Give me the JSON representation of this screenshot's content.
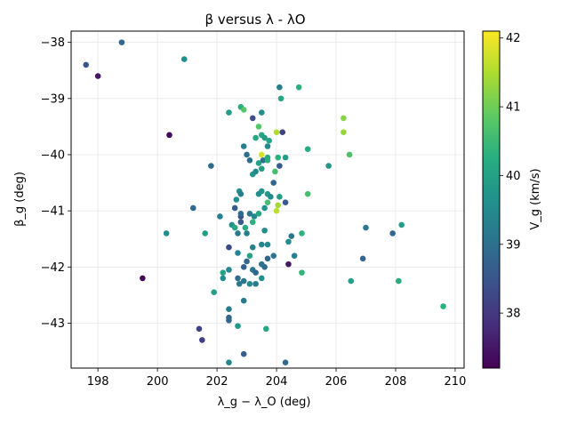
{
  "chart_data": {
    "type": "scatter",
    "title": "β versus λ - λΟ",
    "xlabel": "λ_g − λ_O (deg)",
    "ylabel": "β_g (deg)",
    "colorbar_label": "V_g (km/s)",
    "colormap": "viridis",
    "xlim": [
      197.1,
      210.3
    ],
    "ylim": [
      -43.8,
      -37.8
    ],
    "clim": [
      37.2,
      42.1
    ],
    "grid": true,
    "x_ticks": [
      "198",
      "200",
      "202",
      "204",
      "206",
      "208",
      "210"
    ],
    "y_ticks": [
      "−38",
      "−39",
      "−40",
      "−41",
      "−42",
      "−43"
    ],
    "c_ticks": [
      "38",
      "39",
      "40",
      "41",
      "42"
    ],
    "points": [
      [
        197.6,
        -38.4,
        38.5
      ],
      [
        198.0,
        -38.6,
        37.5
      ],
      [
        198.8,
        -38.0,
        38.8
      ],
      [
        200.9,
        -38.3,
        39.6
      ],
      [
        200.4,
        -39.65,
        37.3
      ],
      [
        201.8,
        -40.2,
        38.9
      ],
      [
        201.2,
        -40.95,
        38.9
      ],
      [
        200.3,
        -41.4,
        39.6
      ],
      [
        201.6,
        -41.4,
        39.9
      ],
      [
        199.5,
        -42.2,
        37.3
      ],
      [
        201.4,
        -43.1,
        38.2
      ],
      [
        201.5,
        -43.3,
        38.1
      ],
      [
        201.9,
        -42.45,
        39.9
      ],
      [
        202.1,
        -41.1,
        39.3
      ],
      [
        202.2,
        -42.1,
        40.0
      ],
      [
        202.2,
        -42.2,
        39.6
      ],
      [
        202.4,
        -42.05,
        39.5
      ],
      [
        202.4,
        -42.75,
        39.2
      ],
      [
        202.4,
        -42.9,
        38.8
      ],
      [
        202.4,
        -42.95,
        38.8
      ],
      [
        202.4,
        -43.7,
        39.5
      ],
      [
        202.4,
        -41.65,
        38.3
      ],
      [
        202.4,
        -39.25,
        39.9
      ],
      [
        202.5,
        -41.25,
        39.7
      ],
      [
        202.6,
        -41.3,
        40.1
      ],
      [
        202.6,
        -40.95,
        38.6
      ],
      [
        202.65,
        -40.8,
        39.6
      ],
      [
        202.7,
        -41.4,
        39.2
      ],
      [
        202.7,
        -41.75,
        39.4
      ],
      [
        202.7,
        -42.2,
        38.9
      ],
      [
        202.75,
        -42.3,
        39.2
      ],
      [
        202.7,
        -43.05,
        39.8
      ],
      [
        202.8,
        -41.1,
        38.4
      ],
      [
        202.8,
        -41.2,
        38.6
      ],
      [
        202.8,
        -41.05,
        38.9
      ],
      [
        202.75,
        -40.65,
        39.6
      ],
      [
        202.8,
        -40.7,
        39.3
      ],
      [
        202.8,
        -39.15,
        40.2
      ],
      [
        202.9,
        -39.2,
        40.8
      ],
      [
        202.9,
        -39.85,
        39.3
      ],
      [
        202.9,
        -42.0,
        38.7
      ],
      [
        202.9,
        -42.25,
        39.1
      ],
      [
        202.9,
        -42.6,
        39.2
      ],
      [
        202.9,
        -43.55,
        38.7
      ],
      [
        202.95,
        -41.3,
        40.2
      ],
      [
        203.0,
        -41.4,
        39.3
      ],
      [
        203.0,
        -40.0,
        39.0
      ],
      [
        203.0,
        -41.9,
        38.8
      ],
      [
        203.1,
        -41.05,
        39.2
      ],
      [
        203.1,
        -41.8,
        40.0
      ],
      [
        203.1,
        -42.3,
        39.5
      ],
      [
        203.1,
        -40.1,
        39.0
      ],
      [
        203.2,
        -41.2,
        40.3
      ],
      [
        203.2,
        -40.35,
        39.8
      ],
      [
        203.2,
        -39.35,
        38.4
      ],
      [
        203.2,
        -41.65,
        39.3
      ],
      [
        203.2,
        -42.05,
        39.1
      ],
      [
        203.25,
        -41.1,
        39.5
      ],
      [
        203.3,
        -39.7,
        40.1
      ],
      [
        203.3,
        -40.3,
        39.5
      ],
      [
        203.3,
        -42.1,
        38.8
      ],
      [
        203.3,
        -42.3,
        39.2
      ],
      [
        203.4,
        -41.05,
        40.1
      ],
      [
        203.4,
        -40.7,
        39.6
      ],
      [
        203.4,
        -40.15,
        40.0
      ],
      [
        203.4,
        -39.5,
        40.8
      ],
      [
        203.5,
        -39.25,
        39.6
      ],
      [
        203.5,
        -39.65,
        40.1
      ],
      [
        203.5,
        -40.0,
        41.8
      ],
      [
        203.5,
        -40.25,
        39.9
      ],
      [
        203.5,
        -40.65,
        39.7
      ],
      [
        203.5,
        -41.95,
        39.1
      ],
      [
        203.5,
        -42.2,
        39.6
      ],
      [
        203.5,
        -41.6,
        39.4
      ],
      [
        203.55,
        -40.1,
        39.0
      ],
      [
        203.6,
        -39.7,
        39.9
      ],
      [
        203.6,
        -40.95,
        39.7
      ],
      [
        203.6,
        -41.35,
        39.6
      ],
      [
        203.6,
        -42.0,
        38.9
      ],
      [
        203.65,
        -43.1,
        40.1
      ],
      [
        203.7,
        -41.6,
        39.5
      ],
      [
        203.7,
        -41.85,
        38.8
      ],
      [
        203.7,
        -40.7,
        39.8
      ],
      [
        203.7,
        -40.85,
        40.6
      ],
      [
        203.7,
        -39.85,
        39.5
      ],
      [
        203.7,
        -40.1,
        40.3
      ],
      [
        203.7,
        -40.05,
        40.2
      ],
      [
        203.75,
        -39.75,
        40.0
      ],
      [
        203.8,
        -40.75,
        39.5
      ],
      [
        203.9,
        -40.5,
        38.8
      ],
      [
        203.9,
        -41.8,
        39.1
      ],
      [
        203.95,
        -40.3,
        40.6
      ],
      [
        204.0,
        -39.6,
        41.5
      ],
      [
        204.0,
        -41.0,
        41.6
      ],
      [
        204.05,
        -40.05,
        40.3
      ],
      [
        204.05,
        -40.9,
        41.4
      ],
      [
        204.1,
        -40.2,
        38.6
      ],
      [
        204.1,
        -38.8,
        39.3
      ],
      [
        204.1,
        -40.75,
        39.9
      ],
      [
        204.15,
        -39.0,
        40.1
      ],
      [
        204.2,
        -39.6,
        38.2
      ],
      [
        204.3,
        -40.05,
        39.9
      ],
      [
        204.3,
        -40.85,
        38.6
      ],
      [
        204.3,
        -43.7,
        38.9
      ],
      [
        204.4,
        -41.95,
        37.5
      ],
      [
        204.4,
        -41.55,
        39.6
      ],
      [
        204.5,
        -41.45,
        39.1
      ],
      [
        204.6,
        -41.8,
        39.3
      ],
      [
        204.75,
        -38.8,
        40.3
      ],
      [
        204.85,
        -41.4,
        40.3
      ],
      [
        204.85,
        -42.1,
        40.4
      ],
      [
        205.05,
        -39.9,
        40.2
      ],
      [
        205.05,
        -40.7,
        40.6
      ],
      [
        205.75,
        -40.2,
        39.8
      ],
      [
        206.25,
        -39.35,
        41.2
      ],
      [
        206.25,
        -39.6,
        41.3
      ],
      [
        206.45,
        -40.0,
        40.7
      ],
      [
        206.5,
        -42.25,
        40.0
      ],
      [
        206.9,
        -41.85,
        38.8
      ],
      [
        207.0,
        -41.3,
        39.2
      ],
      [
        207.9,
        -41.4,
        38.8
      ],
      [
        208.1,
        -42.25,
        40.2
      ],
      [
        208.2,
        -41.25,
        39.9
      ],
      [
        209.6,
        -42.7,
        40.3
      ]
    ]
  }
}
